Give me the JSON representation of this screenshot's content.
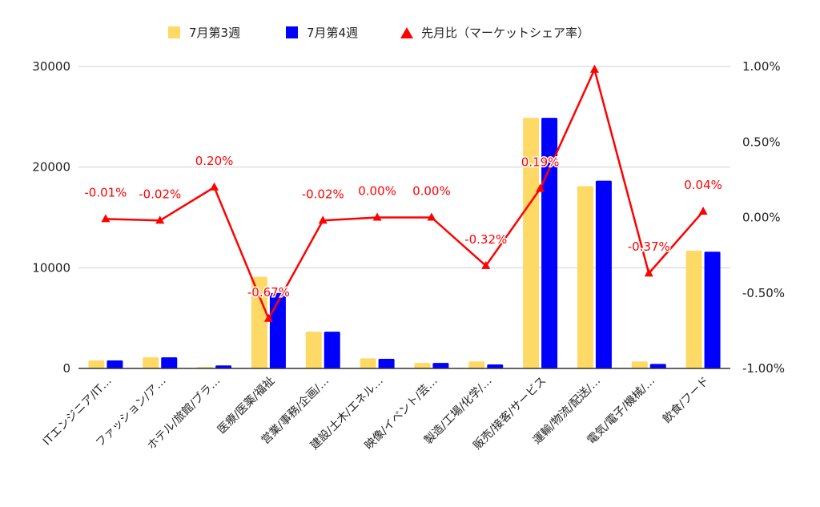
{
  "chart_data": {
    "type": "bar",
    "categories": [
      "ITエンジニア/IT…",
      "ファッション/ア…",
      "ホテル/旅館/ブラ…",
      "医療/医薬/福祉",
      "営業/事務/企画/…",
      "建設/土木/エネル…",
      "映像/イベント/芸…",
      "製造/工場/化学/…",
      "販売/接客/サービス",
      "運輸/物流/配送/…",
      "電気/電子/機械/…",
      "飲食/フード"
    ],
    "series": [
      {
        "name": "7月第3週",
        "type": "bar",
        "axis": "left",
        "color": "#FFD966",
        "values": [
          800,
          1100,
          150,
          9100,
          3650,
          1000,
          550,
          700,
          24900,
          18100,
          700,
          11700
        ]
      },
      {
        "name": "7月第4週",
        "type": "bar",
        "axis": "left",
        "color": "#0000FF",
        "values": [
          800,
          1100,
          300,
          7500,
          3650,
          950,
          550,
          400,
          24900,
          18650,
          450,
          11600
        ]
      },
      {
        "name": "先月比（マーケットシェア率）",
        "type": "line",
        "axis": "right",
        "color": "#FF0000",
        "marker": "triangle",
        "values": [
          -0.01,
          -0.02,
          0.2,
          -0.67,
          -0.02,
          0.0,
          0.0,
          -0.32,
          0.19,
          0.98,
          -0.37,
          0.04
        ],
        "labels": [
          "-0.01%",
          "-0.02%",
          "0.20%",
          "-0.67%",
          "-0.02%",
          "0.00%",
          "0.00%",
          "-0.32%",
          "0.19%",
          "",
          "-0.37%",
          "0.04%"
        ]
      }
    ],
    "y_left": {
      "ticks": [
        "0",
        "10000",
        "20000",
        "30000"
      ],
      "ylim": [
        0,
        30000
      ]
    },
    "y_right": {
      "ticks": [
        "-1.00%",
        "-0.50%",
        "0.00%",
        "0.50%",
        "1.00%"
      ],
      "ylim": [
        -1.0,
        1.0
      ]
    },
    "legend_position": "top",
    "grid": true
  }
}
